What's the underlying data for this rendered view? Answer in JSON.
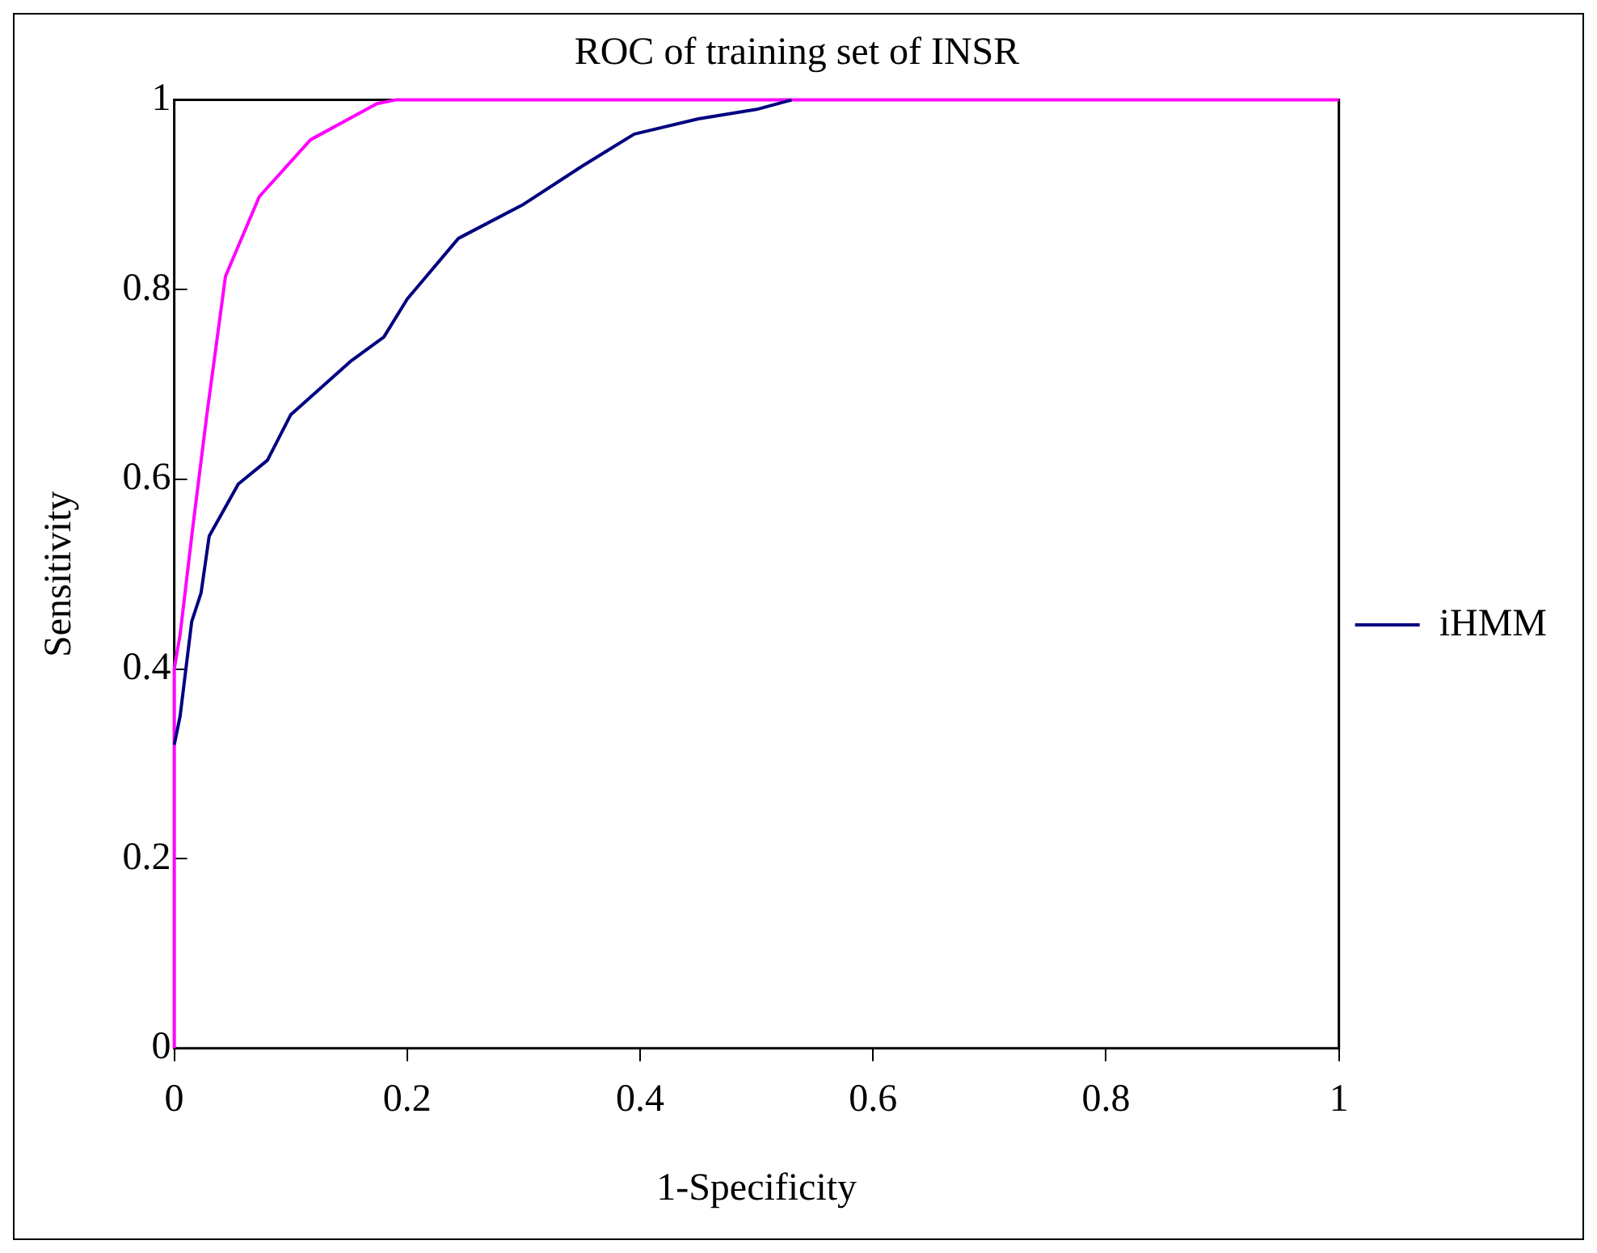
{
  "chart_data": {
    "type": "line",
    "title": "ROC of training set of INSR",
    "xlabel": "1-Specificity",
    "ylabel": "Sensitivity",
    "xlim": [
      0,
      1
    ],
    "ylim": [
      0,
      1
    ],
    "xticks": [
      0,
      0.2,
      0.4,
      0.6,
      0.8,
      1
    ],
    "yticks": [
      0,
      0.2,
      0.4,
      0.6,
      0.8,
      1
    ],
    "grid": false,
    "legend": "right",
    "marker": "none",
    "series": [
      {
        "name": "iHMM",
        "color": "#000080",
        "x": [
          0,
          0.005,
          0.01,
          0.015,
          0.023,
          0.03,
          0.055,
          0.08,
          0.1,
          0.151,
          0.18,
          0.2,
          0.244,
          0.3,
          0.35,
          0.395,
          0.45,
          0.5,
          0.53
        ],
        "values": [
          0.32,
          0.35,
          0.4,
          0.45,
          0.48,
          0.54,
          0.595,
          0.62,
          0.668,
          0.724,
          0.75,
          0.79,
          0.854,
          0.89,
          0.93,
          0.964,
          0.98,
          0.99,
          1
        ]
      },
      {
        "color": "#ff00ff",
        "x": [
          0,
          0,
          0.005,
          0.016,
          0.028,
          0.044,
          0.073,
          0.117,
          0.174,
          0.19,
          1
        ],
        "values": [
          0,
          0.4,
          0.436,
          0.55,
          0.668,
          0.814,
          0.898,
          0.958,
          0.996,
          1,
          1
        ]
      }
    ]
  }
}
